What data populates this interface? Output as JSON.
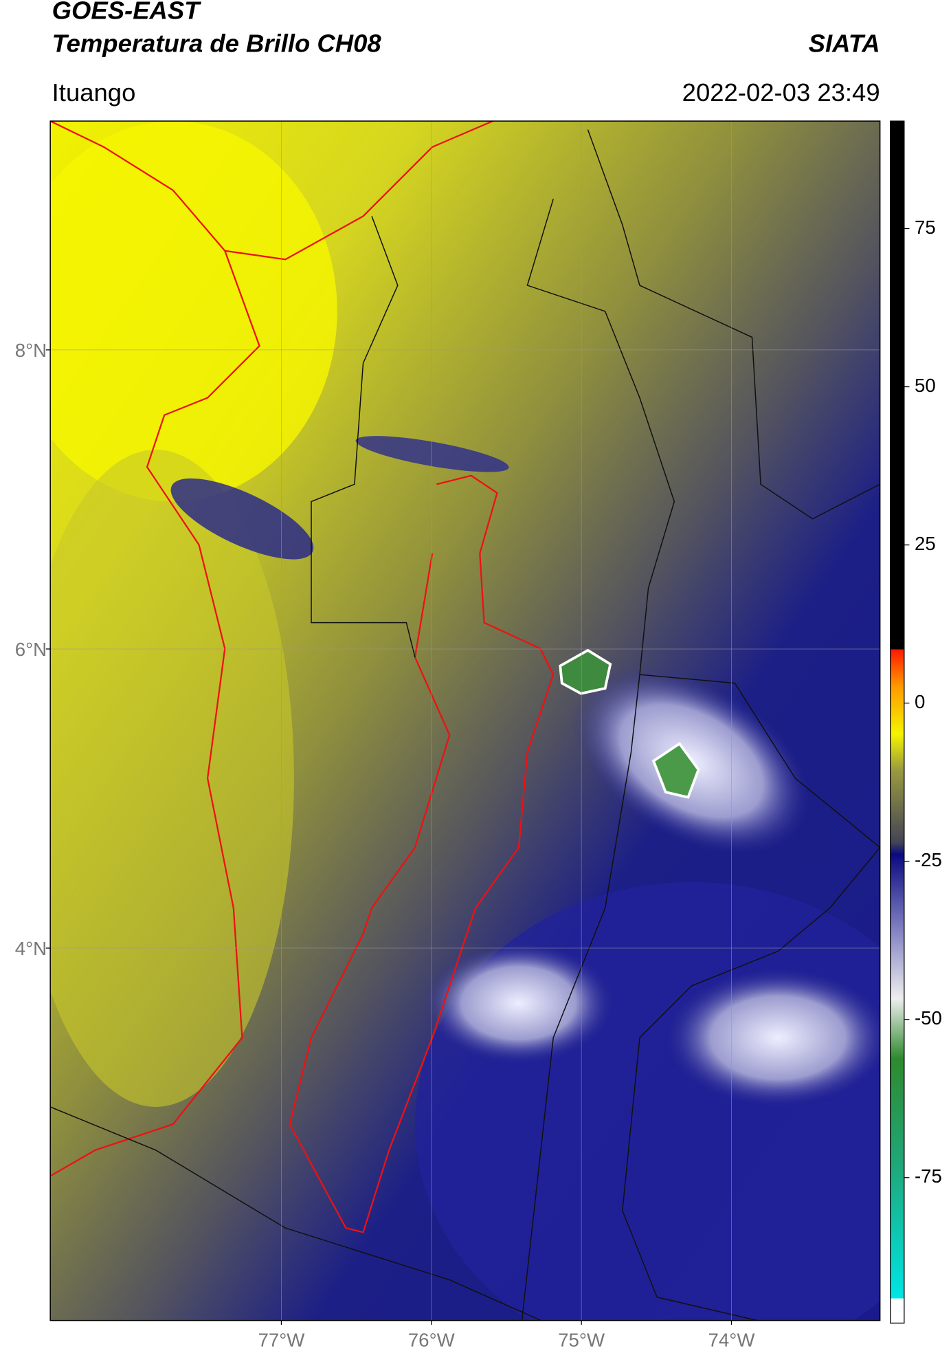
{
  "chart_data": {
    "type": "map",
    "title": "GOES-EAST",
    "subtitle": "Temperatura de Brillo CH08",
    "source": "SIATA",
    "location": "Ituango",
    "datetime": "2022-02-03 23:49",
    "xlim": [
      -78.54,
      -73.01
    ],
    "ylim": [
      1.51,
      9.53
    ],
    "xticks": [
      {
        "value": -77,
        "label": "77°W"
      },
      {
        "value": -76,
        "label": "76°W"
      },
      {
        "value": -75,
        "label": "75°W"
      },
      {
        "value": -74,
        "label": "74°W"
      }
    ],
    "yticks": [
      {
        "value": 8,
        "label": "8°N"
      },
      {
        "value": 6,
        "label": "6°N"
      },
      {
        "value": 4,
        "label": "4°N"
      }
    ],
    "grid": true,
    "colorbar": {
      "lim": [
        -98,
        92
      ],
      "ticks": [
        75,
        50,
        25,
        0,
        -25,
        -50,
        -75
      ]
    }
  }
}
